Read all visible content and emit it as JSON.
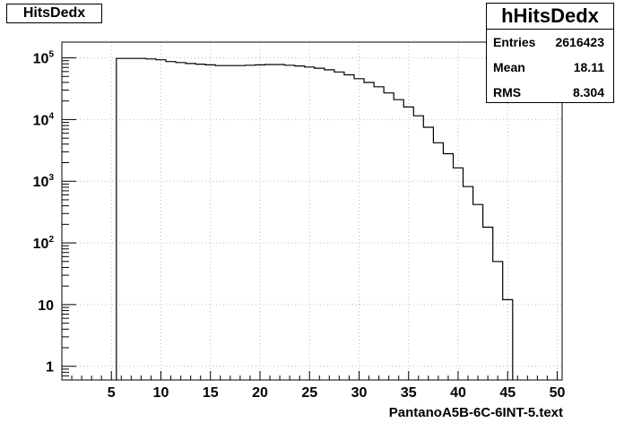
{
  "chart_data": {
    "type": "bar",
    "title": "HitsDedx",
    "xlabel": "PantanoA5B-6C-6INT-5.text",
    "ylabel": "",
    "log_y": true,
    "grid": true,
    "xlim": [
      0,
      50.5
    ],
    "ylim": [
      0.6,
      180000
    ],
    "xticks": [
      "5",
      "10",
      "15",
      "20",
      "25",
      "30",
      "35",
      "40",
      "45",
      "50"
    ],
    "yticks": [
      {
        "value": 1,
        "label": "1"
      },
      {
        "value": 10,
        "label": "10"
      },
      {
        "value": 100,
        "label": "10",
        "exp": "2"
      },
      {
        "value": 1000,
        "label": "10",
        "exp": "3"
      },
      {
        "value": 10000,
        "label": "10",
        "exp": "4"
      },
      {
        "value": 100000,
        "label": "10",
        "exp": "5"
      }
    ],
    "bin_width": 1,
    "bins": [
      {
        "x": 5.5,
        "y": 98000
      },
      {
        "x": 6.5,
        "y": 98000
      },
      {
        "x": 7.5,
        "y": 98000
      },
      {
        "x": 8.5,
        "y": 96000
      },
      {
        "x": 9.5,
        "y": 93000
      },
      {
        "x": 10.5,
        "y": 87000
      },
      {
        "x": 11.5,
        "y": 84000
      },
      {
        "x": 12.5,
        "y": 81000
      },
      {
        "x": 13.5,
        "y": 79000
      },
      {
        "x": 14.5,
        "y": 77000
      },
      {
        "x": 15.5,
        "y": 75000
      },
      {
        "x": 16.5,
        "y": 75000
      },
      {
        "x": 17.5,
        "y": 75000
      },
      {
        "x": 18.5,
        "y": 76000
      },
      {
        "x": 19.5,
        "y": 77000
      },
      {
        "x": 20.5,
        "y": 78000
      },
      {
        "x": 21.5,
        "y": 78000
      },
      {
        "x": 22.5,
        "y": 76000
      },
      {
        "x": 23.5,
        "y": 74000
      },
      {
        "x": 24.5,
        "y": 71000
      },
      {
        "x": 25.5,
        "y": 68000
      },
      {
        "x": 26.5,
        "y": 64000
      },
      {
        "x": 27.5,
        "y": 59000
      },
      {
        "x": 28.5,
        "y": 53000
      },
      {
        "x": 29.5,
        "y": 46000
      },
      {
        "x": 30.5,
        "y": 40000
      },
      {
        "x": 31.5,
        "y": 34000
      },
      {
        "x": 32.5,
        "y": 27000
      },
      {
        "x": 33.5,
        "y": 21000
      },
      {
        "x": 34.5,
        "y": 16000
      },
      {
        "x": 35.5,
        "y": 11500
      },
      {
        "x": 36.5,
        "y": 7500
      },
      {
        "x": 37.5,
        "y": 4200
      },
      {
        "x": 38.5,
        "y": 2800
      },
      {
        "x": 39.5,
        "y": 1650
      },
      {
        "x": 40.5,
        "y": 820
      },
      {
        "x": 41.5,
        "y": 420
      },
      {
        "x": 42.5,
        "y": 180
      },
      {
        "x": 43.5,
        "y": 50
      },
      {
        "x": 44.5,
        "y": 12
      }
    ],
    "stats": {
      "title": "hHitsDedx",
      "rows": [
        {
          "label": "Entries",
          "value": "2616423"
        },
        {
          "label": "Mean",
          "value": "18.11"
        },
        {
          "label": "RMS",
          "value": "8.304"
        }
      ],
      "placement": "top-right"
    }
  }
}
